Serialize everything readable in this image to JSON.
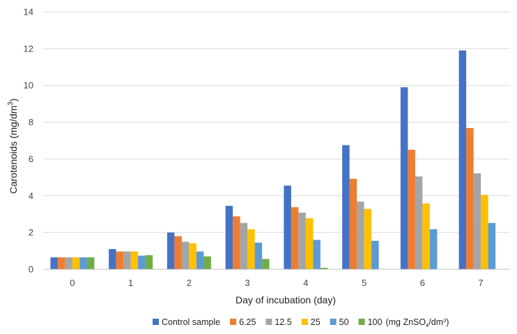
{
  "chart_data": {
    "type": "bar",
    "xlabel": "Day of incubation (day)",
    "ylabel": "Carotenoids (mg/dm",
    "ylabel_sup": "3",
    "ylabel_end": ")",
    "ylim": [
      0,
      14
    ],
    "yticks": [
      0,
      2,
      4,
      6,
      8,
      10,
      12,
      14
    ],
    "categories": [
      "0",
      "1",
      "2",
      "3",
      "4",
      "5",
      "6",
      "7"
    ],
    "grid": true,
    "legend_position": "bottom",
    "legend_unit": {
      "prefix": "(mg ZnSO",
      "sub": "4",
      "mid": "/dm",
      "sup": "3",
      "suffix": ")"
    },
    "series": [
      {
        "name": "Control sample",
        "color": "#4472C4",
        "values": [
          0.65,
          1.1,
          2.0,
          3.45,
          4.55,
          6.75,
          9.9,
          11.9
        ]
      },
      {
        "name": "6.25",
        "color": "#ED7D31",
        "values": [
          0.65,
          0.97,
          1.8,
          2.88,
          3.38,
          4.92,
          6.5,
          7.68
        ]
      },
      {
        "name": "12.5",
        "color": "#A5A5A5",
        "values": [
          0.65,
          0.97,
          1.5,
          2.52,
          3.08,
          3.68,
          5.05,
          5.22
        ]
      },
      {
        "name": "25",
        "color": "#FFC000",
        "values": [
          0.65,
          0.97,
          1.42,
          2.18,
          2.78,
          3.28,
          3.58,
          4.05
        ]
      },
      {
        "name": "50",
        "color": "#5B9BD5",
        "values": [
          0.65,
          0.74,
          0.97,
          1.45,
          1.6,
          1.55,
          2.18,
          2.52
        ]
      },
      {
        "name": "100",
        "color": "#70AD47",
        "values": [
          0.65,
          0.77,
          0.7,
          0.56,
          0.08,
          null,
          null,
          null
        ]
      }
    ]
  }
}
